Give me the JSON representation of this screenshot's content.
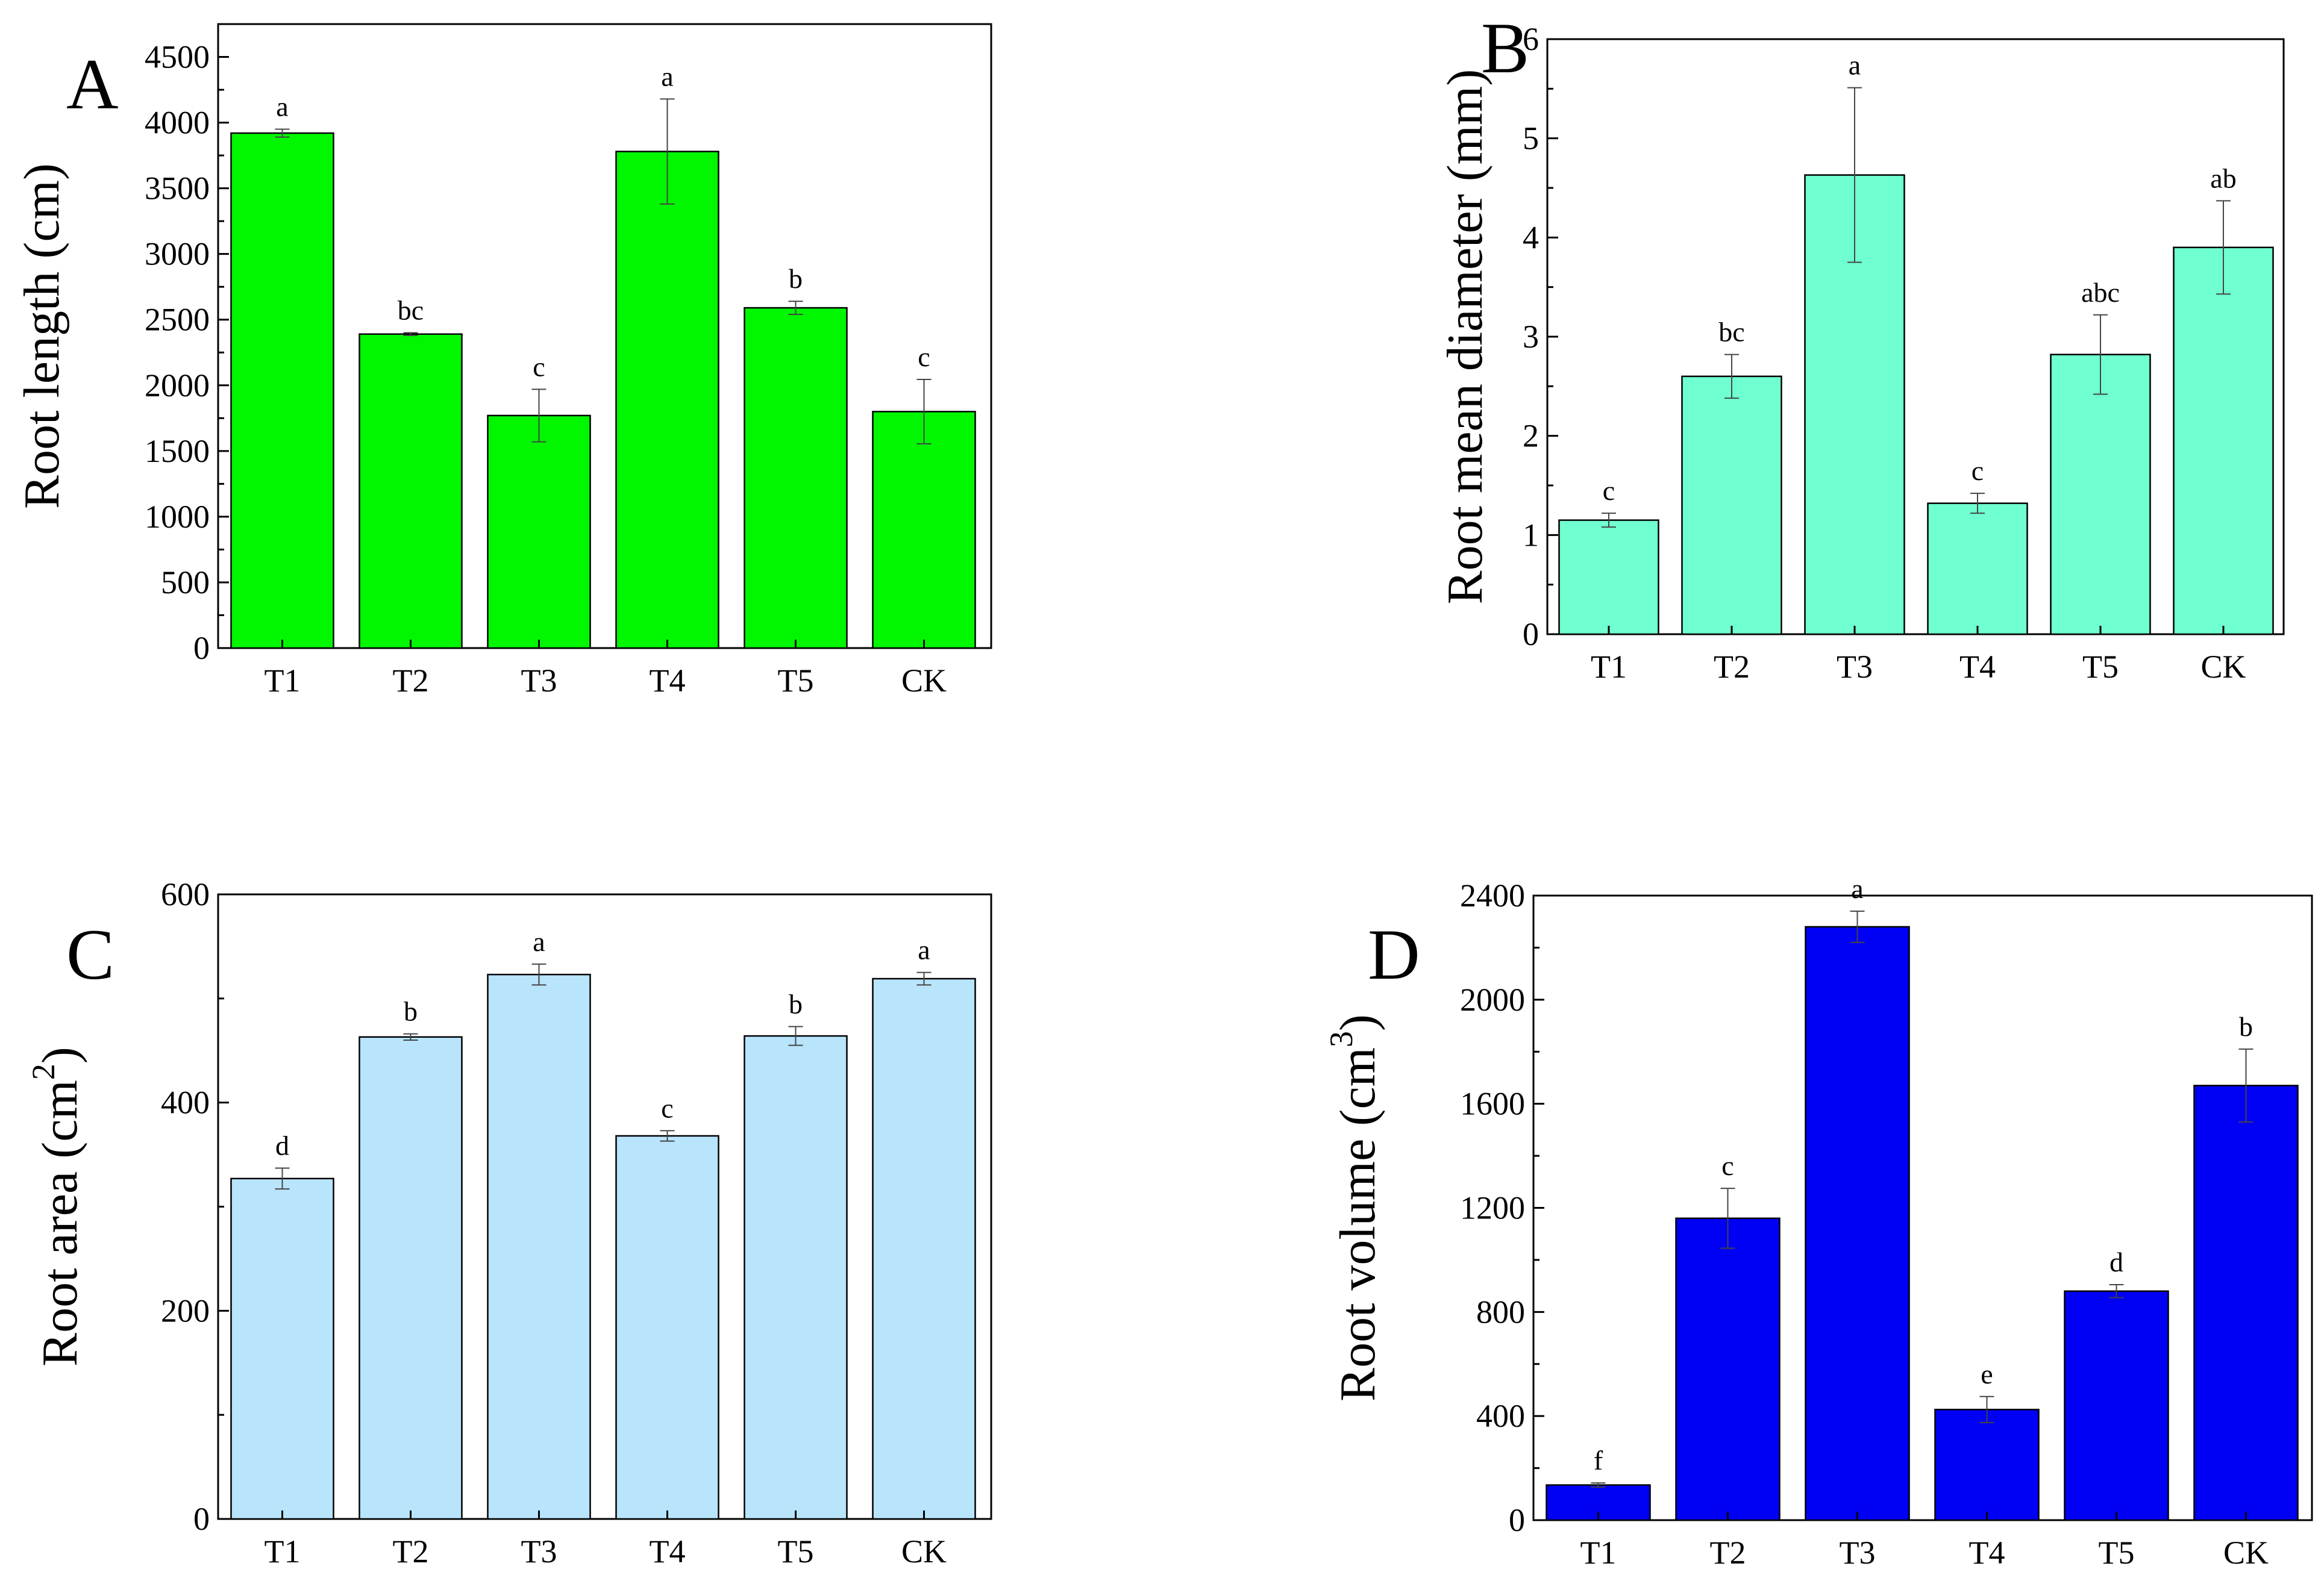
{
  "chart_data": [
    {
      "type": "bar",
      "panel": "A",
      "categories": [
        "T1",
        "T2",
        "T3",
        "T4",
        "T5",
        "CK"
      ],
      "values": [
        3920,
        2390,
        1770,
        3780,
        2590,
        1800
      ],
      "errors": [
        30,
        10,
        200,
        400,
        50,
        245
      ],
      "significance": [
        "a",
        "bc",
        "c",
        "a",
        "b",
        "c"
      ],
      "ylabel": "Root length (cm)",
      "ylim": [
        0,
        4750
      ],
      "yticks": [
        0,
        500,
        1000,
        1500,
        2000,
        2500,
        3000,
        3500,
        4000,
        4500
      ],
      "bar_color": "#00f700",
      "grid": false
    },
    {
      "type": "bar",
      "panel": "B",
      "categories": [
        "T1",
        "T2",
        "T3",
        "T4",
        "T5",
        "CK"
      ],
      "values": [
        1.15,
        2.6,
        4.63,
        1.32,
        2.82,
        3.9
      ],
      "errors": [
        0.07,
        0.22,
        0.88,
        0.1,
        0.4,
        0.47
      ],
      "significance": [
        "c",
        "bc",
        "a",
        "c",
        "abc",
        "ab"
      ],
      "ylabel": "Root mean diameter (mm)",
      "ylim": [
        0,
        6
      ],
      "yticks": [
        0,
        1,
        2,
        3,
        4,
        5,
        6
      ],
      "bar_color": "#6fffd0",
      "grid": false
    },
    {
      "type": "bar",
      "panel": "C",
      "categories": [
        "T1",
        "T2",
        "T3",
        "T4",
        "T5",
        "CK"
      ],
      "values": [
        327,
        463,
        523,
        368,
        464,
        519
      ],
      "errors": [
        10,
        3,
        10,
        5,
        9,
        6
      ],
      "significance": [
        "d",
        "b",
        "a",
        "c",
        "b",
        "a"
      ],
      "ylabel": "Root area (cm",
      "ylabel_sup": "2",
      "ylabel_end": ")",
      "ylim": [
        0,
        600
      ],
      "yticks": [
        0,
        200,
        400,
        600
      ],
      "bar_color": "#b8e4fc",
      "grid": false
    },
    {
      "type": "bar",
      "panel": "D",
      "categories": [
        "T1",
        "T2",
        "T3",
        "T4",
        "T5",
        "CK"
      ],
      "values": [
        135,
        1160,
        2280,
        425,
        880,
        1670
      ],
      "errors": [
        8,
        115,
        60,
        50,
        25,
        140
      ],
      "significance": [
        "f",
        "c",
        "a",
        "e",
        "d",
        "b"
      ],
      "ylabel": "Root volume (cm",
      "ylabel_sup": "3",
      "ylabel_end": ")",
      "ylim": [
        0,
        2400
      ],
      "yticks": [
        0,
        400,
        800,
        1200,
        1600,
        2000,
        2400
      ],
      "bar_color": "#0000f5",
      "grid": false
    }
  ]
}
